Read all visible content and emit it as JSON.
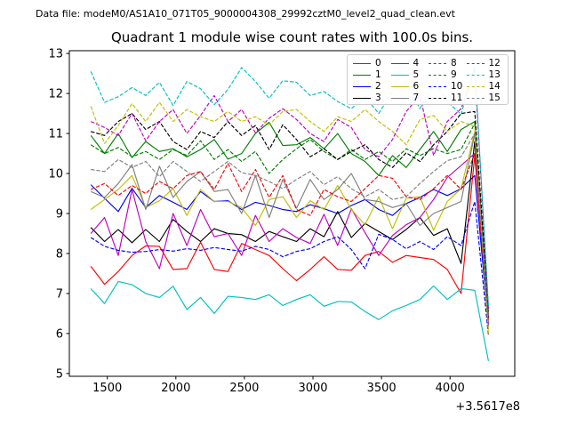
{
  "header": {
    "data_file_label": "Data file: modeM0/AS1A10_071T05_9000004308_29992cztM0_level2_quad_clean.evt"
  },
  "chart_data": {
    "type": "line",
    "title": "Quadrant 1 module wise count rates with 100.0s bins.",
    "xlabel": "",
    "ylabel": "",
    "x_offset_label": "+3.5617e8",
    "xticks": [
      1500,
      2000,
      2500,
      3000,
      3500,
      4000
    ],
    "yticks": [
      5,
      6,
      7,
      8,
      9,
      10,
      11,
      12,
      13
    ],
    "xlim": [
      1223,
      4472
    ],
    "ylim": [
      4.93,
      13.07
    ],
    "grid": false,
    "legend": {
      "location": "upper right",
      "columns": 4
    },
    "x": [
      1380,
      1480,
      1580,
      1680,
      1780,
      1880,
      1980,
      2080,
      2180,
      2280,
      2380,
      2480,
      2580,
      2680,
      2780,
      2880,
      2980,
      3080,
      3180,
      3280,
      3380,
      3480,
      3580,
      3680,
      3780,
      3880,
      3980,
      4080,
      4180,
      4280
    ],
    "series": [
      {
        "name": "0",
        "color": "#ff0000",
        "dashed": false,
        "values": [
          7.68,
          7.23,
          7.55,
          7.95,
          8.19,
          8.18,
          7.6,
          7.62,
          8.28,
          7.6,
          7.55,
          8.25,
          8.1,
          7.95,
          7.62,
          7.32,
          7.6,
          7.92,
          7.6,
          7.58,
          7.95,
          8.05,
          7.78,
          7.95,
          7.9,
          7.85,
          7.6,
          7.0,
          10.45,
          6.25
        ]
      },
      {
        "name": "1",
        "color": "#007f00",
        "dashed": false,
        "values": [
          10.95,
          10.5,
          11.0,
          10.4,
          10.8,
          10.55,
          10.62,
          10.42,
          10.6,
          10.85,
          10.36,
          10.5,
          11.0,
          11.28,
          10.7,
          10.72,
          10.9,
          10.62,
          11.0,
          10.5,
          10.3,
          9.95,
          10.45,
          10.15,
          10.6,
          11.05,
          10.55,
          11.1,
          11.3,
          6.35
        ]
      },
      {
        "name": "2",
        "color": "#0000ff",
        "dashed": false,
        "values": [
          9.72,
          9.38,
          9.05,
          9.63,
          9.15,
          9.45,
          9.28,
          9.1,
          9.55,
          9.3,
          9.32,
          9.1,
          9.28,
          9.2,
          9.1,
          9.05,
          9.22,
          9.12,
          9.0,
          9.2,
          9.35,
          9.1,
          8.95,
          9.25,
          9.4,
          9.6,
          9.45,
          9.62,
          9.95,
          6.2
        ]
      },
      {
        "name": "3",
        "color": "#000000",
        "dashed": false,
        "values": [
          8.65,
          8.3,
          8.6,
          8.27,
          8.6,
          8.3,
          8.85,
          8.55,
          8.3,
          8.62,
          8.5,
          8.47,
          8.3,
          8.55,
          8.42,
          8.3,
          8.62,
          8.42,
          9.05,
          8.4,
          8.75,
          8.55,
          8.35,
          8.6,
          8.9,
          8.45,
          8.62,
          7.75,
          10.8,
          6.4
        ]
      },
      {
        "name": "4",
        "color": "#bf00bf",
        "dashed": false,
        "values": [
          8.5,
          8.9,
          7.95,
          9.6,
          8.3,
          7.62,
          9.0,
          8.2,
          9.1,
          8.42,
          8.5,
          7.95,
          8.95,
          8.3,
          8.62,
          8.4,
          8.25,
          8.98,
          8.2,
          9.12,
          8.52,
          7.95,
          8.45,
          8.72,
          8.9,
          9.35,
          9.9,
          10.2,
          10.5,
          6.45
        ]
      },
      {
        "name": "5",
        "color": "#00bfbf",
        "dashed": false,
        "values": [
          7.12,
          6.75,
          7.3,
          7.22,
          7.0,
          6.9,
          7.18,
          6.6,
          6.9,
          6.5,
          6.93,
          6.9,
          6.85,
          6.97,
          6.7,
          6.85,
          6.97,
          6.68,
          6.8,
          6.79,
          6.55,
          6.35,
          6.57,
          6.7,
          6.85,
          7.19,
          6.85,
          7.12,
          7.08,
          5.31
        ]
      },
      {
        "name": "6",
        "color": "#bfbf00",
        "dashed": false,
        "values": [
          9.1,
          9.35,
          9.6,
          9.95,
          9.15,
          9.32,
          9.62,
          8.95,
          9.6,
          9.3,
          9.3,
          9.15,
          8.7,
          9.35,
          9.42,
          8.9,
          9.32,
          9.1,
          9.7,
          9.1,
          8.72,
          9.42,
          8.62,
          9.38,
          9.42,
          8.58,
          9.3,
          9.62,
          11.05,
          6.1
        ]
      },
      {
        "name": "7",
        "color": "#7f7f7f",
        "dashed": false,
        "values": [
          9.55,
          9.4,
          9.75,
          10.22,
          9.1,
          10.18,
          9.4,
          9.8,
          10.05,
          9.55,
          9.6,
          9.0,
          9.95,
          8.9,
          9.85,
          9.13,
          9.85,
          9.35,
          9.6,
          10.0,
          9.35,
          9.3,
          9.15,
          9.25,
          8.7,
          9.0,
          9.15,
          9.3,
          11.0,
          6.45
        ]
      },
      {
        "name": "8",
        "color": "#ff0000",
        "dashed": true,
        "values": [
          9.6,
          9.75,
          9.45,
          9.7,
          9.5,
          9.8,
          9.62,
          9.95,
          10.05,
          9.6,
          10.25,
          9.55,
          10.1,
          9.4,
          9.95,
          9.1,
          8.95,
          9.6,
          9.42,
          9.3,
          9.62,
          9.95,
          9.88,
          9.42,
          9.35,
          9.62,
          9.95,
          9.6,
          10.5,
          6.3
        ]
      },
      {
        "name": "9",
        "color": "#007f00",
        "dashed": true,
        "values": [
          10.72,
          10.5,
          10.65,
          10.42,
          10.55,
          10.35,
          10.6,
          10.45,
          10.82,
          10.35,
          10.6,
          10.3,
          10.55,
          10.0,
          10.35,
          10.62,
          10.85,
          10.55,
          10.35,
          10.6,
          10.35,
          10.55,
          10.3,
          10.62,
          10.45,
          10.62,
          10.5,
          10.6,
          11.25,
          6.5
        ]
      },
      {
        "name": "10",
        "color": "#0000ff",
        "dashed": true,
        "values": [
          8.4,
          8.18,
          8.08,
          8.03,
          8.05,
          8.1,
          8.06,
          8.12,
          8.08,
          8.15,
          8.1,
          8.06,
          8.18,
          8.1,
          7.92,
          8.05,
          8.12,
          8.3,
          8.42,
          8.1,
          7.62,
          8.48,
          8.35,
          8.12,
          8.3,
          8.1,
          8.42,
          8.2,
          9.3,
          5.95
        ]
      },
      {
        "name": "11",
        "color": "#000000",
        "dashed": true,
        "values": [
          11.05,
          10.95,
          11.3,
          11.5,
          11.1,
          11.3,
          10.8,
          10.6,
          11.05,
          10.9,
          11.3,
          10.95,
          11.2,
          10.6,
          11.22,
          10.85,
          10.42,
          10.62,
          10.35,
          10.55,
          10.72,
          10.35,
          10.15,
          10.52,
          10.3,
          10.72,
          11.05,
          11.5,
          11.55,
          6.55
        ]
      },
      {
        "name": "12",
        "color": "#bf00bf",
        "dashed": true,
        "values": [
          11.3,
          11.15,
          10.95,
          11.5,
          10.82,
          11.3,
          11.6,
          11.0,
          11.45,
          11.95,
          11.3,
          11.6,
          11.02,
          11.38,
          11.62,
          11.35,
          11.0,
          10.8,
          11.35,
          11.15,
          10.6,
          10.42,
          10.85,
          11.55,
          11.95,
          10.45,
          11.3,
          11.62,
          12.6,
          6.6
        ]
      },
      {
        "name": "13",
        "color": "#00bfbf",
        "dashed": true,
        "values": [
          12.55,
          11.78,
          11.92,
          12.15,
          11.95,
          12.28,
          11.7,
          12.3,
          12.12,
          11.72,
          12.1,
          12.65,
          12.3,
          11.88,
          12.32,
          12.28,
          11.95,
          12.05,
          11.8,
          11.62,
          11.92,
          11.5,
          12.05,
          12.3,
          11.62,
          12.28,
          11.8,
          11.48,
          12.68,
          6.7
        ]
      },
      {
        "name": "14",
        "color": "#bfbf00",
        "dashed": true,
        "values": [
          11.68,
          10.75,
          11.2,
          11.75,
          11.3,
          11.78,
          11.3,
          11.6,
          11.42,
          11.3,
          11.55,
          11.3,
          11.42,
          11.22,
          11.55,
          11.6,
          11.3,
          11.05,
          11.42,
          11.3,
          11.6,
          11.3,
          11.05,
          10.72,
          11.35,
          11.45,
          11.05,
          11.3,
          11.18,
          6.0
        ]
      },
      {
        "name": "15",
        "color": "#7f7f7f",
        "dashed": true,
        "values": [
          10.1,
          10.05,
          10.35,
          10.15,
          10.3,
          9.92,
          10.3,
          10.05,
          9.8,
          10.05,
          10.3,
          10.02,
          9.95,
          9.8,
          9.62,
          9.85,
          10.05,
          9.72,
          9.92,
          9.62,
          9.42,
          9.6,
          9.35,
          9.42,
          9.75,
          10.05,
          10.32,
          10.42,
          11.0,
          6.15
        ]
      }
    ]
  }
}
